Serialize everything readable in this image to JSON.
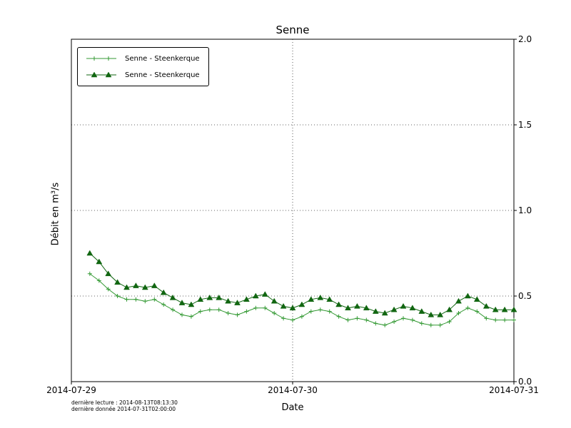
{
  "chart_data": {
    "type": "line",
    "title": "Senne",
    "xlabel": "Date",
    "ylabel": "Débit en m³/s",
    "x_ticks": [
      "2014-07-29",
      "2014-07-30",
      "2014-07-31"
    ],
    "y_tick_labels": [
      "0.0",
      "0.5",
      "1.0",
      "1.5",
      "2.0"
    ],
    "xlim_hours": [
      0,
      48
    ],
    "ylim": [
      0,
      2
    ],
    "grid": "dotted, at y=0.5/1.0/1.5 and x=2014-07-30",
    "legend_position": "upper left",
    "x_hours": [
      2,
      3,
      4,
      5,
      6,
      7,
      8,
      9,
      10,
      11,
      12,
      13,
      14,
      15,
      16,
      17,
      18,
      19,
      20,
      21,
      22,
      23,
      24,
      25,
      26,
      27,
      28,
      29,
      30,
      31,
      32,
      33,
      34,
      35,
      36,
      37,
      38,
      39,
      40,
      41,
      42,
      43,
      44,
      45,
      46,
      47,
      48
    ],
    "series": [
      {
        "name": "Senne - Steenkerque",
        "marker": "plus",
        "color": "#339933",
        "values": [
          0.63,
          0.59,
          0.54,
          0.5,
          0.48,
          0.48,
          0.47,
          0.48,
          0.45,
          0.42,
          0.39,
          0.38,
          0.41,
          0.42,
          0.42,
          0.4,
          0.39,
          0.41,
          0.43,
          0.43,
          0.4,
          0.37,
          0.36,
          0.38,
          0.41,
          0.42,
          0.41,
          0.38,
          0.36,
          0.37,
          0.36,
          0.34,
          0.33,
          0.35,
          0.37,
          0.36,
          0.34,
          0.33,
          0.33,
          0.35,
          0.4,
          0.43,
          0.41,
          0.37,
          0.36,
          0.36,
          0.36
        ]
      },
      {
        "name": "Senne - Steenkerque",
        "marker": "triangle",
        "color": "#116611",
        "values": [
          0.75,
          0.7,
          0.63,
          0.58,
          0.55,
          0.56,
          0.55,
          0.56,
          0.52,
          0.49,
          0.46,
          0.45,
          0.48,
          0.49,
          0.49,
          0.47,
          0.46,
          0.48,
          0.5,
          0.51,
          0.47,
          0.44,
          0.43,
          0.45,
          0.48,
          0.49,
          0.48,
          0.45,
          0.43,
          0.44,
          0.43,
          0.41,
          0.4,
          0.42,
          0.44,
          0.43,
          0.41,
          0.39,
          0.39,
          0.42,
          0.47,
          0.5,
          0.48,
          0.44,
          0.42,
          0.42,
          0.42
        ]
      }
    ],
    "footnotes": [
      "dernière lecture : 2014-08-13T08:13:30",
      "dernière donnée  2014-07-31T02:00:00"
    ]
  }
}
